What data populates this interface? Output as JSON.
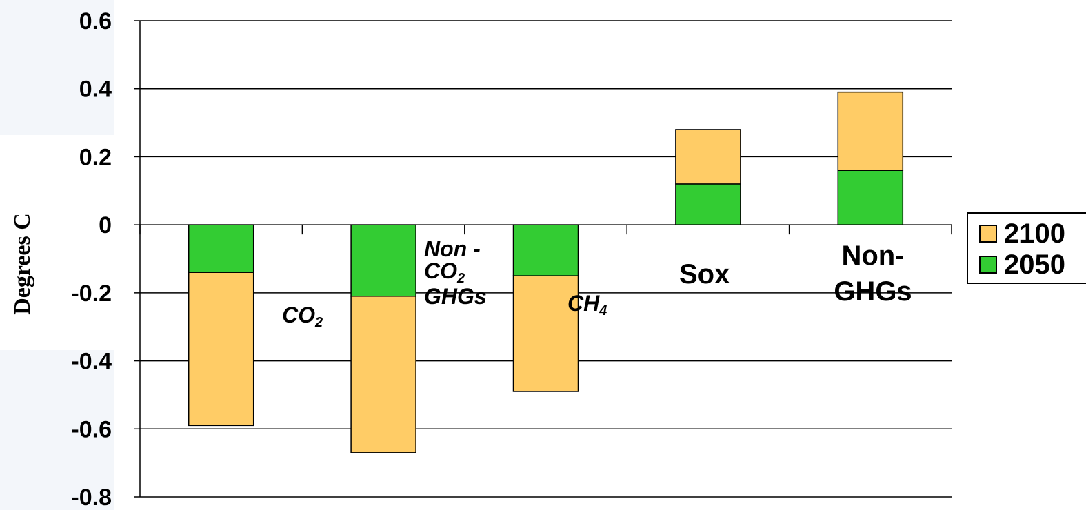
{
  "chart_data": {
    "type": "bar",
    "stacked": true,
    "ylabel": "Degrees C",
    "ylim": [
      -0.8,
      0.6
    ],
    "yticks": [
      "0.6",
      "0.4",
      "0.2",
      "0",
      "-0.2",
      "-0.4",
      "-0.6",
      "-0.8"
    ],
    "grid": true,
    "legend_position": "right",
    "categories": [
      "CO2",
      "Non - CO2 GHGs",
      "CH4",
      "Sox",
      "Non- GHGs"
    ],
    "series": [
      {
        "name": "2050",
        "color": "#33cc33",
        "values": [
          -0.14,
          -0.21,
          -0.15,
          0.12,
          0.16
        ]
      },
      {
        "name": "2100",
        "color": "#ffcc66",
        "values": [
          -0.45,
          -0.46,
          -0.34,
          0.16,
          0.23
        ]
      }
    ],
    "legend": [
      "2100",
      "2050"
    ]
  },
  "labels": {
    "co2": {
      "main": "CO",
      "sub": "2"
    },
    "nonco2": {
      "line1": "Non -",
      "line2_main": "CO",
      "line2_sub": "2",
      "line3": "GHGs"
    },
    "ch4": {
      "main": "CH",
      "sub": "4"
    },
    "sox": "Sox",
    "nonghg": {
      "line1": "Non-",
      "line2": "GHGs"
    }
  }
}
